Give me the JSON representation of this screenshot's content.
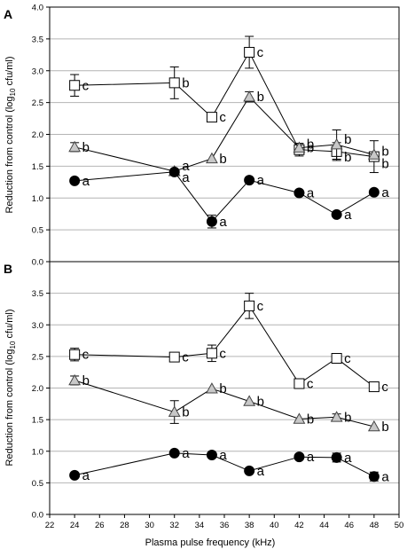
{
  "figure": {
    "xlabel": "Plasma pulse frequency (kHz)",
    "ylabel_main": "Reduction from control (log",
    "ylabel_sub": "10",
    "ylabel_tail": " cfu/ml)"
  },
  "chart_data": [
    {
      "panel": "A",
      "type": "line",
      "xlabel": "",
      "ylabel": "Reduction from control (log10 cfu/ml)",
      "xlim": [
        22,
        50
      ],
      "ylim": [
        0,
        4.0
      ],
      "y_ticks": [
        "0.0",
        "0.5",
        "1.0",
        "1.5",
        "2.0",
        "2.5",
        "3.0",
        "3.5",
        "4.0"
      ],
      "grid": "horizontal",
      "x": [
        24,
        32,
        35,
        38,
        42,
        45,
        48
      ],
      "series": [
        {
          "marker": "square",
          "fill": "#ffffff",
          "values": [
            2.77,
            2.81,
            2.27,
            3.29,
            1.76,
            1.73,
            1.65
          ],
          "errors": [
            0.17,
            0.25,
            0.0,
            0.25,
            0.1,
            0.14,
            0.25
          ],
          "labels": [
            "c",
            "b",
            "c",
            "c",
            "b",
            "b",
            "b"
          ],
          "label_dy": [
            0,
            0,
            0,
            0,
            -2,
            6,
            8
          ]
        },
        {
          "marker": "triangle",
          "fill": "#c8c8c8",
          "values": [
            1.8,
            1.42,
            1.62,
            2.59,
            1.79,
            1.84,
            1.68
          ],
          "errors": [
            0.07,
            0.0,
            0.0,
            0.08,
            0.05,
            0.23,
            0.0
          ],
          "labels": [
            "b",
            "a",
            "b",
            "b",
            "b",
            "b",
            "b"
          ],
          "label_dy": [
            0,
            -6,
            0,
            0,
            -4,
            -6,
            -4
          ]
        },
        {
          "marker": "circle",
          "fill": "#000000",
          "values": [
            1.27,
            1.41,
            0.63,
            1.28,
            1.08,
            0.74,
            1.09
          ],
          "errors": [
            0.0,
            0.0,
            0.1,
            0.0,
            0.0,
            0.0,
            0.0
          ],
          "labels": [
            "a",
            "a",
            "a",
            "a",
            "a",
            "a",
            "a"
          ],
          "label_dy": [
            0,
            6,
            0,
            0,
            0,
            0,
            0
          ]
        }
      ]
    },
    {
      "panel": "B",
      "type": "line",
      "xlabel": "Plasma pulse frequency (kHz)",
      "ylabel": "Reduction from control (log10 cfu/ml)",
      "xlim": [
        22,
        50
      ],
      "ylim": [
        0,
        4.0
      ],
      "y_ticks": [
        "0.0",
        "0.5",
        "1.0",
        "1.5",
        "2.0",
        "2.5",
        "3.0",
        "3.5"
      ],
      "x_ticks": [
        "22",
        "24",
        "26",
        "28",
        "30",
        "32",
        "34",
        "36",
        "38",
        "40",
        "42",
        "44",
        "46",
        "48",
        "50"
      ],
      "grid": "horizontal",
      "x": [
        24,
        32,
        35,
        38,
        42,
        45,
        48
      ],
      "series": [
        {
          "marker": "square",
          "fill": "#ffffff",
          "values": [
            2.53,
            2.49,
            2.55,
            3.3,
            2.07,
            2.47,
            2.02
          ],
          "errors": [
            0.1,
            0.0,
            0.13,
            0.2,
            0.0,
            0.0,
            0.0
          ],
          "labels": [
            "c",
            "c",
            "c",
            "c",
            "c",
            "c",
            "c"
          ],
          "label_dy": [
            0,
            0,
            0,
            0,
            0,
            0,
            0
          ]
        },
        {
          "marker": "triangle",
          "fill": "#c8c8c8",
          "values": [
            2.12,
            1.62,
            1.99,
            1.79,
            1.51,
            1.54,
            1.39
          ],
          "errors": [
            0.07,
            0.18,
            0.0,
            0.0,
            0.0,
            0.05,
            0.0
          ],
          "labels": [
            "b",
            "b",
            "b",
            "b",
            "b",
            "b",
            "b"
          ],
          "label_dy": [
            0,
            0,
            0,
            0,
            0,
            0,
            0
          ]
        },
        {
          "marker": "circle",
          "fill": "#000000",
          "values": [
            0.62,
            0.97,
            0.94,
            0.69,
            0.91,
            0.9,
            0.6
          ],
          "errors": [
            0.0,
            0.0,
            0.0,
            0.0,
            0.0,
            0.07,
            0.07
          ],
          "labels": [
            "a",
            "a",
            "a",
            "a",
            "a",
            "a",
            "a"
          ],
          "label_dy": [
            0,
            0,
            0,
            0,
            0,
            0,
            0
          ]
        }
      ]
    }
  ]
}
